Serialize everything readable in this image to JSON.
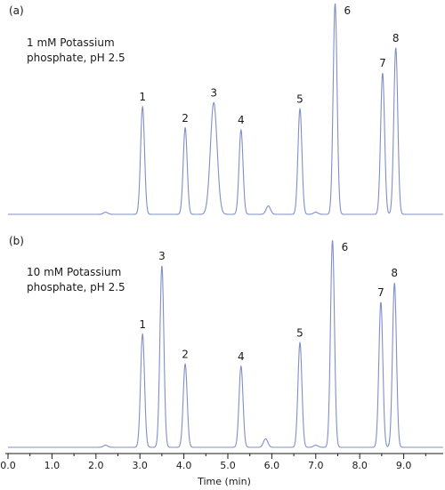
{
  "chart_data": [
    {
      "type": "line",
      "panel_label": "(a)",
      "condition": [
        "1 mM Potassium",
        "phosphate, pH 2.5"
      ],
      "line_color": "#7f8fc8",
      "peaks": [
        {
          "label": "1",
          "rt": 3.06,
          "height": 0.51
        },
        {
          "label": "2",
          "rt": 4.03,
          "height": 0.41
        },
        {
          "label": "3",
          "rt": 4.68,
          "height": 0.53
        },
        {
          "label": "4",
          "rt": 5.3,
          "height": 0.4
        },
        {
          "label": "5",
          "rt": 6.64,
          "height": 0.5
        },
        {
          "label": "6",
          "rt": 7.44,
          "height": 1.0
        },
        {
          "label": "7",
          "rt": 8.52,
          "height": 0.67
        },
        {
          "label": "8",
          "rt": 8.82,
          "height": 0.79
        }
      ],
      "minor_peaks": [
        {
          "rt": 2.22,
          "height": 0.01
        },
        {
          "rt": 5.92,
          "height": 0.04
        },
        {
          "rt": 7.0,
          "height": 0.01
        }
      ]
    },
    {
      "type": "line",
      "panel_label": "(b)",
      "condition": [
        "10 mM Potassium",
        "phosphate, pH 2.5"
      ],
      "line_color": "#7f8fc8",
      "peaks": [
        {
          "label": "1",
          "rt": 3.06,
          "height": 0.53
        },
        {
          "label": "3",
          "rt": 3.5,
          "height": 0.85
        },
        {
          "label": "2",
          "rt": 4.03,
          "height": 0.39
        },
        {
          "label": "4",
          "rt": 5.3,
          "height": 0.38
        },
        {
          "label": "5",
          "rt": 6.64,
          "height": 0.49
        },
        {
          "label": "6",
          "rt": 7.38,
          "height": 0.97
        },
        {
          "label": "7",
          "rt": 8.48,
          "height": 0.68
        },
        {
          "label": "8",
          "rt": 8.79,
          "height": 0.77
        }
      ],
      "minor_peaks": [
        {
          "rt": 2.22,
          "height": 0.01
        },
        {
          "rt": 5.86,
          "height": 0.04
        },
        {
          "rt": 7.0,
          "height": 0.01
        }
      ]
    }
  ],
  "x_axis": {
    "label": "Time (min)",
    "range": [
      0,
      10
    ],
    "ticks": [
      {
        "value": 0,
        "label": "0.0"
      },
      {
        "value": 1,
        "label": "1.0"
      },
      {
        "value": 2,
        "label": "2.0"
      },
      {
        "value": 3,
        "label": "3.0"
      },
      {
        "value": 4,
        "label": "4.0"
      },
      {
        "value": 5,
        "label": "5.0"
      },
      {
        "value": 6,
        "label": "6.0"
      },
      {
        "value": 7,
        "label": "7.0"
      },
      {
        "value": 8,
        "label": "8.0"
      },
      {
        "value": 9,
        "label": "9.0"
      }
    ]
  }
}
